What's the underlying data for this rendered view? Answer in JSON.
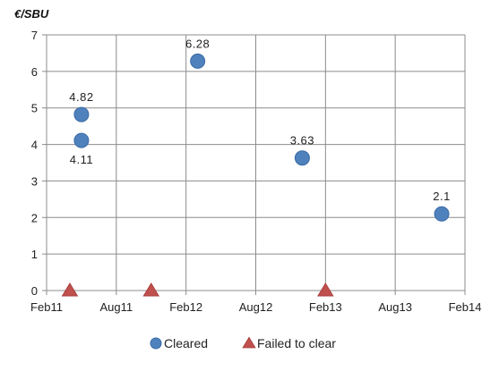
{
  "chart_data": {
    "type": "scatter",
    "title": "",
    "xlabel": "",
    "ylabel": "€/SBU",
    "ylim": [
      0,
      7
    ],
    "yticks": [
      0,
      1,
      2,
      3,
      4,
      5,
      6,
      7
    ],
    "xlim": [
      "2011-02",
      "2014-02"
    ],
    "xticks": [
      "Feb11",
      "Aug11",
      "Feb12",
      "Aug12",
      "Feb13",
      "Aug13",
      "Feb14"
    ],
    "grid": true,
    "legend": "bottom",
    "series": [
      {
        "name": "Cleared",
        "marker": "circle",
        "color": "#4f81bd",
        "points": [
          {
            "x": "2011-05",
            "y": 4.82,
            "label": "4.82",
            "label_pos": "above"
          },
          {
            "x": "2011-05",
            "y": 4.11,
            "label": "4.11",
            "label_pos": "below"
          },
          {
            "x": "2012-03",
            "y": 6.28,
            "label": "6.28",
            "label_pos": "above"
          },
          {
            "x": "2012-12",
            "y": 3.63,
            "label": "3.63",
            "label_pos": "above"
          },
          {
            "x": "2013-12",
            "y": 2.1,
            "label": "2.1",
            "label_pos": "above"
          }
        ]
      },
      {
        "name": "Failed to clear",
        "marker": "triangle",
        "color": "#c0504d",
        "points": [
          {
            "x": "2011-04",
            "y": 0
          },
          {
            "x": "2011-11",
            "y": 0
          },
          {
            "x": "2013-02",
            "y": 0
          }
        ]
      }
    ]
  }
}
